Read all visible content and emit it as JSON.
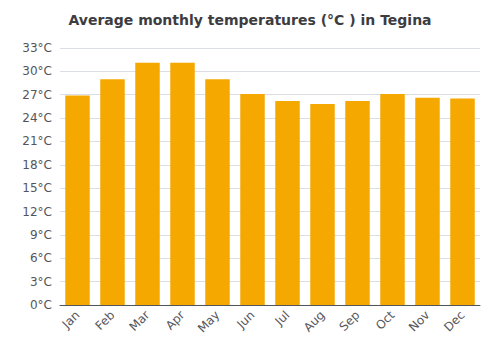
{
  "chart_data": {
    "type": "bar",
    "title": "Average monthly temperatures (°C ) in Tegina",
    "categories": [
      "Jan",
      "Feb",
      "Mar",
      "Apr",
      "May",
      "Jun",
      "Jul",
      "Aug",
      "Sep",
      "Oct",
      "Nov",
      "Dec"
    ],
    "values": [
      26.9,
      29.0,
      31.1,
      31.1,
      29.0,
      27.1,
      26.2,
      25.8,
      26.2,
      27.1,
      26.6,
      26.5
    ],
    "color": "#F5A800",
    "ylim": [
      0,
      33
    ],
    "yticks": [
      {
        "value": 0,
        "label": "0°C"
      },
      {
        "value": 3,
        "label": "3°C"
      },
      {
        "value": 6,
        "label": "6°C"
      },
      {
        "value": 9,
        "label": "9°C"
      },
      {
        "value": 12,
        "label": "12°C"
      },
      {
        "value": 15,
        "label": "15°C"
      },
      {
        "value": 18,
        "label": "18°C"
      },
      {
        "value": 21,
        "label": "21°C"
      },
      {
        "value": 24,
        "label": "24°C"
      },
      {
        "value": 27,
        "label": "27°C"
      },
      {
        "value": 30,
        "label": "30°C"
      },
      {
        "value": 33,
        "label": "33°C"
      }
    ],
    "grid": true
  }
}
